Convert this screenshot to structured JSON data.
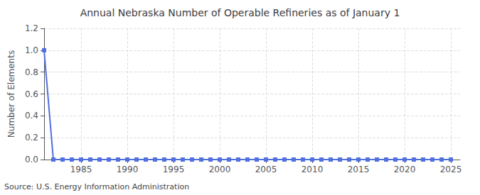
{
  "chart_data": {
    "type": "line",
    "title": "Annual Nebraska Number of Operable Refineries as of January 1",
    "ylabel": "Number of Elements",
    "annotation": "Source: U.S. Energy Information Administration",
    "marker": "square",
    "x": [
      1981,
      1982,
      1983,
      1984,
      1985,
      1986,
      1987,
      1988,
      1989,
      1990,
      1991,
      1992,
      1993,
      1994,
      1995,
      1996,
      1997,
      1998,
      1999,
      2000,
      2001,
      2002,
      2003,
      2004,
      2005,
      2006,
      2007,
      2008,
      2009,
      2010,
      2011,
      2012,
      2013,
      2014,
      2015,
      2016,
      2017,
      2018,
      2019,
      2020,
      2021,
      2022,
      2023,
      2024,
      2025
    ],
    "values": [
      1,
      0,
      0,
      0,
      0,
      0,
      0,
      0,
      0,
      0,
      0,
      0,
      0,
      0,
      0,
      0,
      0,
      0,
      0,
      0,
      0,
      0,
      0,
      0,
      0,
      0,
      0,
      0,
      0,
      0,
      0,
      0,
      0,
      0,
      0,
      0,
      0,
      0,
      0,
      0,
      0,
      0,
      0,
      0,
      0
    ],
    "xlim": [
      1981,
      2026
    ],
    "xticks": [
      1985,
      1990,
      1995,
      2000,
      2005,
      2010,
      2015,
      2020,
      2025
    ],
    "ylim": [
      0.0,
      1.2
    ],
    "yticks": [
      {
        "value": 0.0,
        "label": "0.0"
      },
      0.2,
      0.4,
      0.6,
      0.8,
      {
        "value": 1.0,
        "label": "1.0"
      },
      1.2
    ],
    "grid": true
  }
}
